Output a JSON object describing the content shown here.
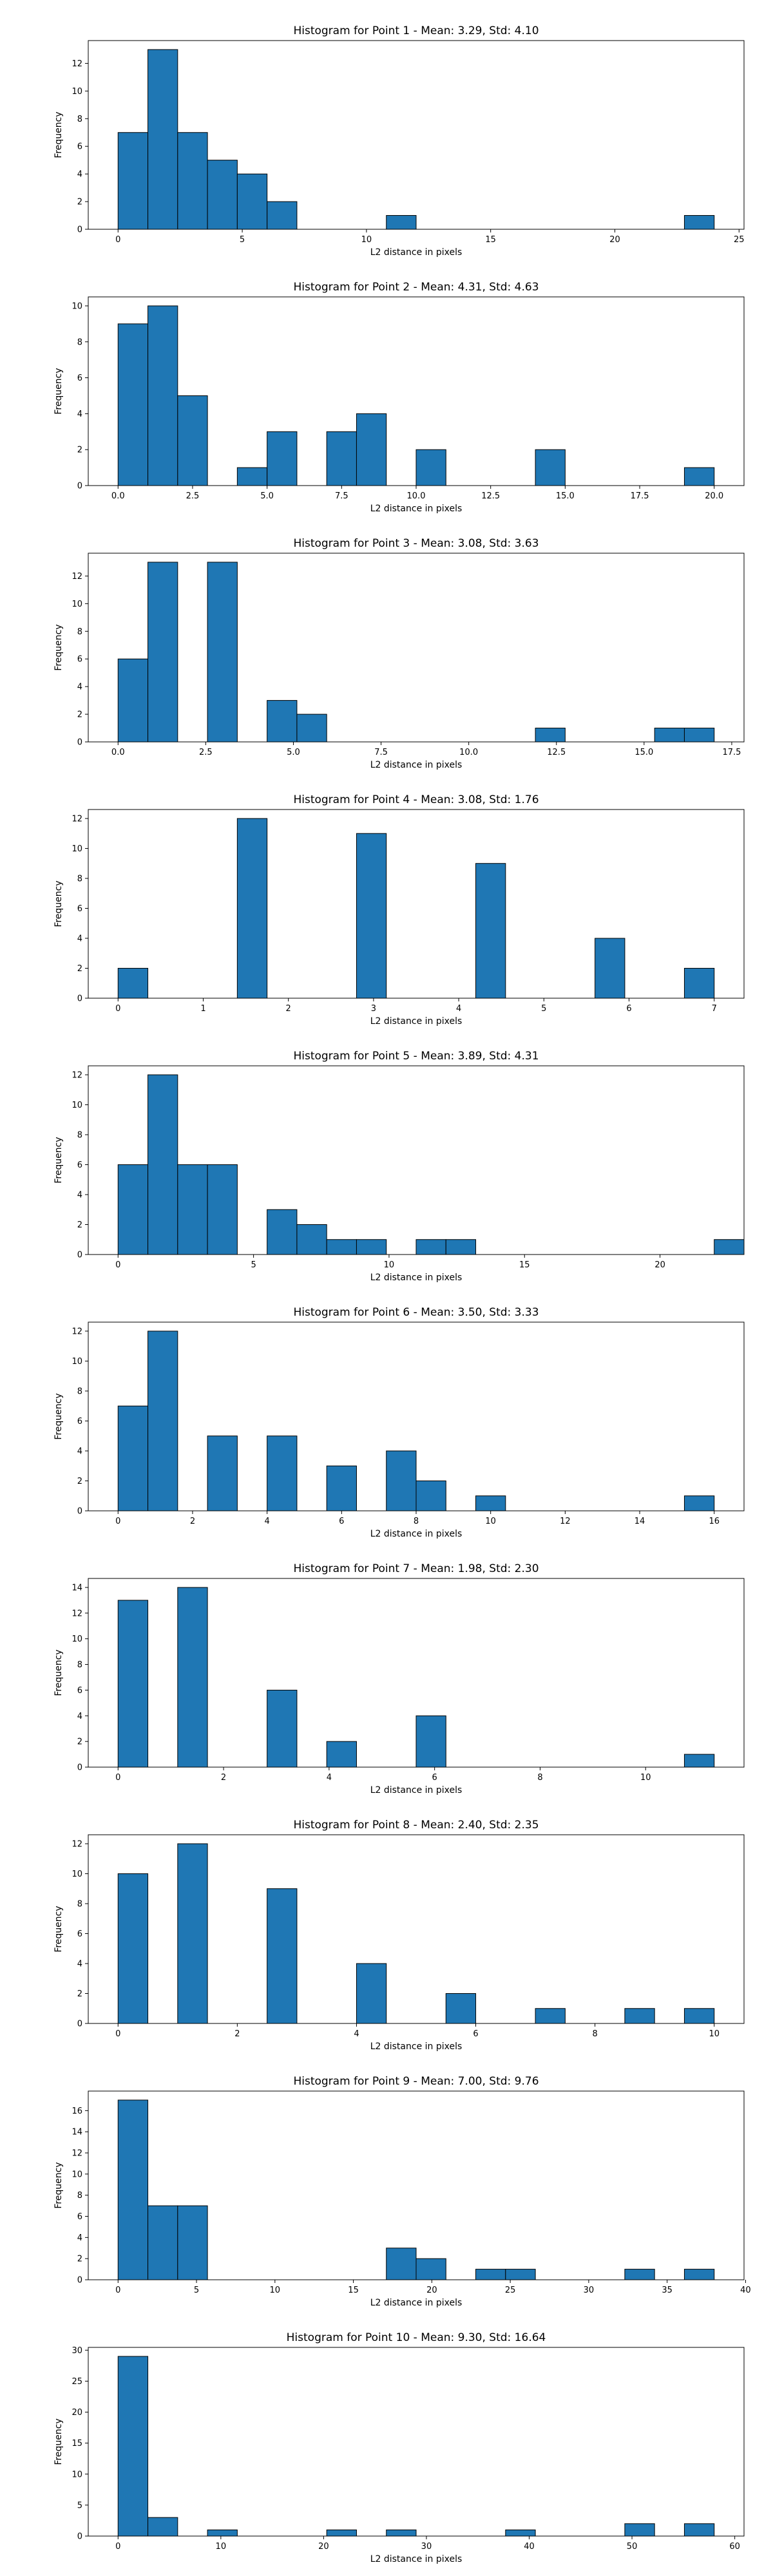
{
  "chart_data": [
    {
      "type": "bar",
      "title": "Histogram for Point 1 - Mean: 3.29, Std: 4.10",
      "xlabel": "L2 distance in pixels",
      "ylabel": "Frequency",
      "xlim": [
        -1.2,
        25.2
      ],
      "ylim": [
        0,
        13.65
      ],
      "xticks": [
        0,
        5,
        10,
        15,
        20,
        25
      ],
      "yticks": [
        0,
        2,
        4,
        6,
        8,
        10,
        12
      ],
      "bin_width": 1.2,
      "bin_starts": [
        0,
        1.2,
        2.4,
        3.6,
        4.8,
        6.0,
        10.8,
        22.8
      ],
      "counts": [
        7,
        13,
        7,
        5,
        4,
        2,
        1,
        1
      ],
      "grid": false,
      "color": "#1f77b4"
    },
    {
      "type": "bar",
      "title": "Histogram for Point 2 - Mean: 4.31, Std: 4.63",
      "xlabel": "L2 distance in pixels",
      "ylabel": "Frequency",
      "xlim": [
        -1.0,
        21.0
      ],
      "ylim": [
        0,
        10.5
      ],
      "xticks": [
        0.0,
        2.5,
        5.0,
        7.5,
        10.0,
        12.5,
        15.0,
        17.5,
        20.0
      ],
      "xtick_labels": [
        "0.0",
        "2.5",
        "5.0",
        "7.5",
        "10.0",
        "12.5",
        "15.0",
        "17.5",
        "20.0"
      ],
      "yticks": [
        0,
        2,
        4,
        6,
        8,
        10
      ],
      "bin_width": 1.0,
      "bin_starts": [
        0,
        1,
        2,
        4,
        5,
        7,
        8,
        10,
        14,
        19
      ],
      "counts": [
        9,
        10,
        5,
        1,
        3,
        3,
        4,
        2,
        2,
        1
      ],
      "grid": false,
      "color": "#1f77b4"
    },
    {
      "type": "bar",
      "title": "Histogram for Point 3 - Mean: 3.08, Std: 3.63",
      "xlabel": "L2 distance in pixels",
      "ylabel": "Frequency",
      "xlim": [
        -0.85,
        17.85
      ],
      "ylim": [
        0,
        13.65
      ],
      "xticks": [
        0.0,
        2.5,
        5.0,
        7.5,
        10.0,
        12.5,
        15.0,
        17.5
      ],
      "xtick_labels": [
        "0.0",
        "2.5",
        "5.0",
        "7.5",
        "10.0",
        "12.5",
        "15.0",
        "17.5"
      ],
      "yticks": [
        0,
        2,
        4,
        6,
        8,
        10,
        12
      ],
      "bin_width": 0.85,
      "bin_starts": [
        0,
        0.85,
        2.55,
        4.25,
        5.1,
        11.9,
        15.3,
        16.15
      ],
      "counts": [
        6,
        13,
        13,
        3,
        2,
        1,
        1,
        1
      ],
      "grid": false,
      "color": "#1f77b4"
    },
    {
      "type": "bar",
      "title": "Histogram for Point 4 - Mean: 3.08, Std: 1.76",
      "xlabel": "L2 distance in pixels",
      "ylabel": "Frequency",
      "xlim": [
        -0.35,
        7.35
      ],
      "ylim": [
        0,
        12.6
      ],
      "xticks": [
        0,
        1,
        2,
        3,
        4,
        5,
        6,
        7
      ],
      "yticks": [
        0,
        2,
        4,
        6,
        8,
        10,
        12
      ],
      "bin_width": 0.35,
      "bin_starts": [
        0,
        1.4,
        2.8,
        4.2,
        5.6,
        6.65
      ],
      "counts": [
        2,
        12,
        11,
        9,
        4,
        2
      ],
      "grid": false,
      "color": "#1f77b4"
    },
    {
      "type": "bar",
      "title": "Histogram for Point 5 - Mean: 3.89, Std: 4.31",
      "xlabel": "L2 distance in pixels",
      "ylabel": "Frequency",
      "xlim": [
        -1.1,
        23.1
      ],
      "ylim": [
        0,
        12.6
      ],
      "xticks": [
        0,
        5,
        10,
        15,
        20
      ],
      "yticks": [
        0,
        2,
        4,
        6,
        8,
        10,
        12
      ],
      "bin_width": 1.1,
      "bin_starts": [
        0,
        1.1,
        2.2,
        3.3,
        5.5,
        6.6,
        7.7,
        8.8,
        11.0,
        12.1,
        22.0
      ],
      "counts": [
        6,
        12,
        6,
        6,
        3,
        2,
        1,
        1,
        1,
        1,
        1
      ],
      "grid": false,
      "color": "#1f77b4"
    },
    {
      "type": "bar",
      "title": "Histogram for Point 6 - Mean: 3.50, Std: 3.33",
      "xlabel": "L2 distance in pixels",
      "ylabel": "Frequency",
      "xlim": [
        -0.8,
        16.8
      ],
      "ylim": [
        0,
        12.6
      ],
      "xticks": [
        0,
        2,
        4,
        6,
        8,
        10,
        12,
        14,
        16
      ],
      "yticks": [
        0,
        2,
        4,
        6,
        8,
        10,
        12
      ],
      "bin_width": 0.8,
      "bin_starts": [
        0,
        0.8,
        2.4,
        4.0,
        5.6,
        7.2,
        8.0,
        9.6,
        15.2
      ],
      "counts": [
        7,
        12,
        5,
        5,
        3,
        4,
        2,
        1,
        1
      ],
      "grid": false,
      "color": "#1f77b4"
    },
    {
      "type": "bar",
      "title": "Histogram for Point 7 - Mean: 1.98, Std: 2.30",
      "xlabel": "L2 distance in pixels",
      "ylabel": "Frequency",
      "xlim": [
        -0.565,
        11.865
      ],
      "ylim": [
        0,
        14.7
      ],
      "xticks": [
        0,
        2,
        4,
        6,
        8,
        10
      ],
      "yticks": [
        0,
        2,
        4,
        6,
        8,
        10,
        12,
        14
      ],
      "bin_width": 0.565,
      "bin_starts": [
        0,
        1.13,
        2.825,
        3.955,
        5.65,
        10.735
      ],
      "counts": [
        13,
        14,
        6,
        2,
        4,
        1
      ],
      "grid": false,
      "color": "#1f77b4"
    },
    {
      "type": "bar",
      "title": "Histogram for Point 8 - Mean: 2.40, Std: 2.35",
      "xlabel": "L2 distance in pixels",
      "ylabel": "Frequency",
      "xlim": [
        -0.5,
        10.5
      ],
      "ylim": [
        0,
        12.6
      ],
      "xticks": [
        0,
        2,
        4,
        6,
        8,
        10
      ],
      "yticks": [
        0,
        2,
        4,
        6,
        8,
        10,
        12
      ],
      "bin_width": 0.5,
      "bin_starts": [
        0,
        1.0,
        2.5,
        4.0,
        5.5,
        7.0,
        8.5,
        9.5
      ],
      "counts": [
        10,
        12,
        9,
        4,
        2,
        1,
        1,
        1
      ],
      "grid": false,
      "color": "#1f77b4"
    },
    {
      "type": "bar",
      "title": "Histogram for Point 9 - Mean: 7.00, Std: 9.76",
      "xlabel": "L2 distance in pixels",
      "ylabel": "Frequency",
      "xlim": [
        -1.9,
        39.9
      ],
      "ylim": [
        0,
        17.85
      ],
      "xticks": [
        0,
        5,
        10,
        15,
        20,
        25,
        30,
        35,
        40
      ],
      "yticks": [
        0,
        2,
        4,
        6,
        8,
        10,
        12,
        14,
        16
      ],
      "bin_width": 1.9,
      "bin_starts": [
        0,
        1.9,
        3.8,
        17.1,
        19.0,
        22.8,
        24.7,
        32.3,
        36.1
      ],
      "counts": [
        17,
        7,
        7,
        3,
        2,
        1,
        1,
        1,
        1
      ],
      "grid": false,
      "color": "#1f77b4"
    },
    {
      "type": "bar",
      "title": "Histogram for Point 10 - Mean: 9.30, Std: 16.64",
      "xlabel": "L2 distance in pixels",
      "ylabel": "Frequency",
      "xlim": [
        -2.9,
        60.9
      ],
      "ylim": [
        0,
        30.45
      ],
      "xticks": [
        0,
        10,
        20,
        30,
        40,
        50,
        60
      ],
      "yticks": [
        0,
        5,
        10,
        15,
        20,
        25,
        30
      ],
      "bin_width": 2.9,
      "bin_starts": [
        0,
        2.9,
        8.7,
        20.3,
        26.1,
        37.7,
        49.3,
        55.1
      ],
      "counts": [
        29,
        3,
        1,
        1,
        1,
        1,
        2,
        2
      ],
      "grid": false,
      "color": "#1f77b4"
    }
  ]
}
